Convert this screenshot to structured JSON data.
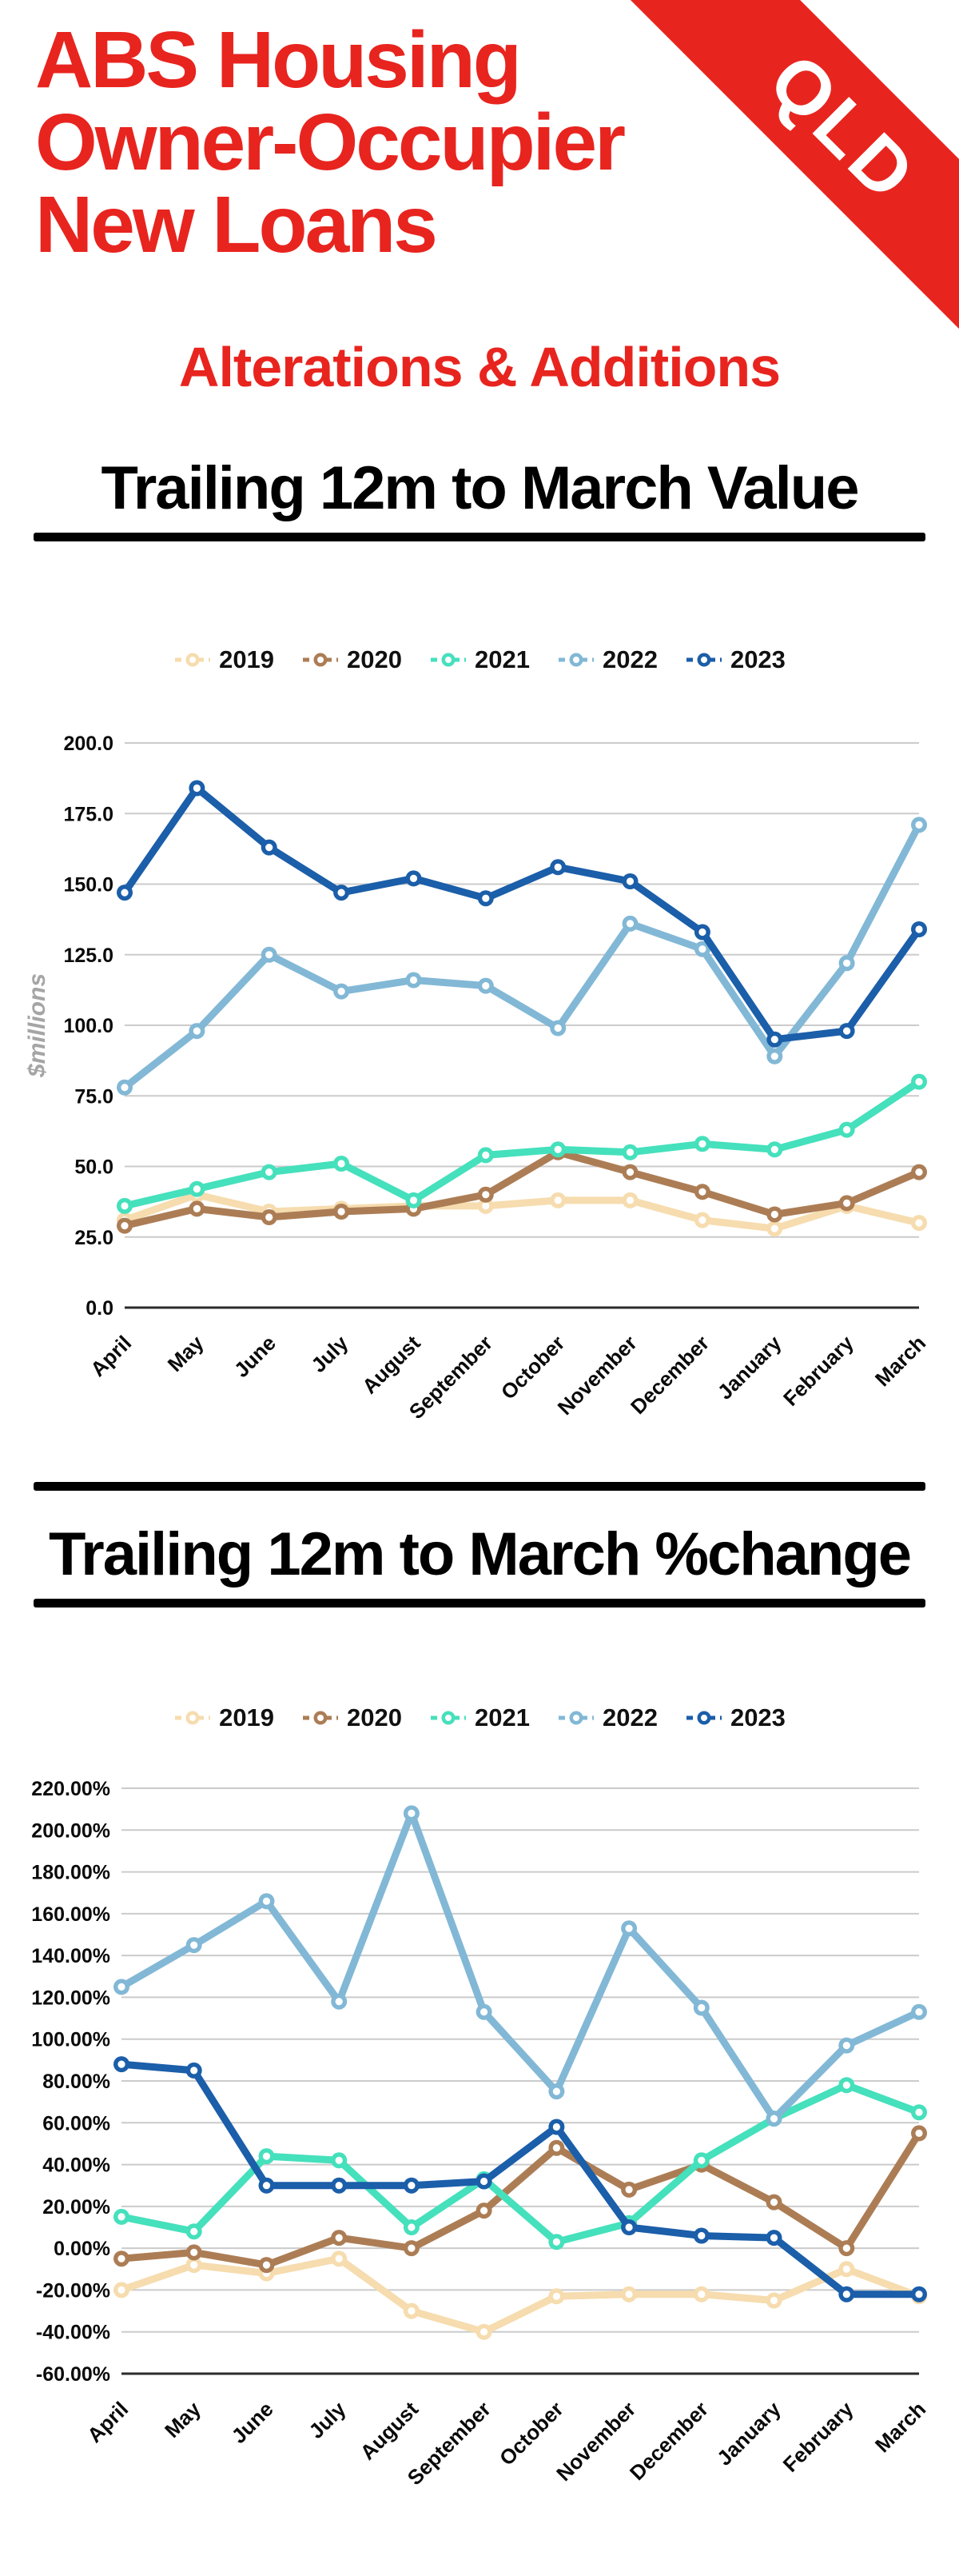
{
  "header": {
    "title_lines": [
      "ABS Housing",
      "Owner-Occupier",
      "New Loans"
    ],
    "ribbon": "QLD",
    "subtitle": "Alterations & Additions"
  },
  "colors": {
    "red": "#E8241F",
    "grid": "#CBCBCB",
    "axis": "#2B2B2B",
    "tick_text": "#0A0A0A",
    "ylabel_gray": "#A5A5A5"
  },
  "sections": [
    {
      "title": "Trailing 12m to March Value"
    },
    {
      "title": "Trailing 12m to March %change"
    }
  ],
  "chart_data": [
    {
      "type": "line",
      "title": "Trailing 12m to March Value",
      "xlabel": "",
      "ylabel": "$millions",
      "ylim": [
        0,
        200
      ],
      "ytick_step": 25,
      "ytick_format": "one_decimal",
      "grid": true,
      "legend_position": "top",
      "categories": [
        "April",
        "May",
        "June",
        "July",
        "August",
        "September",
        "October",
        "November",
        "December",
        "January",
        "February",
        "March"
      ],
      "series": [
        {
          "name": "2019",
          "color": "#F6DCAE",
          "values": [
            31,
            40,
            34,
            35,
            36,
            36,
            38,
            38,
            31,
            28,
            36,
            30
          ]
        },
        {
          "name": "2020",
          "color": "#AC7D55",
          "values": [
            29,
            35,
            32,
            34,
            35,
            40,
            55,
            48,
            41,
            33,
            37,
            48
          ]
        },
        {
          "name": "2021",
          "color": "#45E0BC",
          "values": [
            36,
            42,
            48,
            51,
            38,
            54,
            56,
            55,
            58,
            56,
            63,
            80
          ]
        },
        {
          "name": "2022",
          "color": "#82B8D6",
          "values": [
            78,
            98,
            125,
            112,
            116,
            114,
            99,
            136,
            127,
            89,
            122,
            171
          ]
        },
        {
          "name": "2023",
          "color": "#1B5EA9",
          "values": [
            147,
            184,
            163,
            147,
            152,
            145,
            156,
            151,
            133,
            95,
            98,
            134
          ]
        }
      ]
    },
    {
      "type": "line",
      "title": "Trailing 12m to March %change",
      "xlabel": "",
      "ylabel": "",
      "ylim": [
        -60,
        220
      ],
      "ytick_step": 20,
      "ytick_format": "percent_two_decimals",
      "grid": true,
      "legend_position": "top",
      "categories": [
        "April",
        "May",
        "June",
        "July",
        "August",
        "September",
        "October",
        "November",
        "December",
        "January",
        "February",
        "March"
      ],
      "series": [
        {
          "name": "2019",
          "color": "#F6DCAE",
          "values": [
            -20,
            -8,
            -12,
            -5,
            -30,
            -40,
            -23,
            -22,
            -22,
            -25,
            -10,
            -23
          ]
        },
        {
          "name": "2020",
          "color": "#AC7D55",
          "values": [
            -5,
            -2,
            -8,
            5,
            0,
            18,
            48,
            28,
            40,
            22,
            0,
            55
          ]
        },
        {
          "name": "2021",
          "color": "#45E0BC",
          "values": [
            15,
            8,
            44,
            42,
            10,
            33,
            3,
            12,
            42,
            62,
            78,
            65
          ]
        },
        {
          "name": "2022",
          "color": "#82B8D6",
          "values": [
            125,
            145,
            166,
            118,
            208,
            113,
            75,
            153,
            115,
            62,
            97,
            113
          ]
        },
        {
          "name": "2023",
          "color": "#1B5EA9",
          "values": [
            88,
            85,
            30,
            30,
            30,
            32,
            58,
            10,
            6,
            5,
            -22,
            -22
          ]
        }
      ]
    }
  ]
}
